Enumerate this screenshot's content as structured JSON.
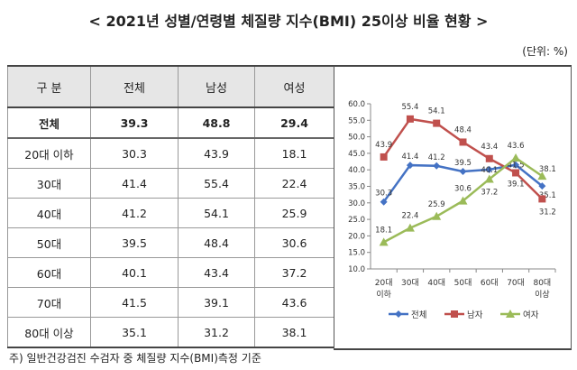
{
  "title": "< 2021년 성별/연령별 체질량 지수(BMI) 25이상 비율 현황 >",
  "unit": "(단위: %)",
  "table": {
    "headers": [
      "구 분",
      "전체",
      "남성",
      "여성"
    ],
    "rows": [
      [
        "전체",
        "39.3",
        "48.8",
        "29.4"
      ],
      [
        "20대 이하",
        "30.3",
        "43.9",
        "18.1"
      ],
      [
        "30대",
        "41.4",
        "55.4",
        "22.4"
      ],
      [
        "40대",
        "41.2",
        "54.1",
        "25.9"
      ],
      [
        "50대",
        "39.5",
        "48.4",
        "30.6"
      ],
      [
        "60대",
        "40.1",
        "43.4",
        "37.2"
      ],
      [
        "70대",
        "41.5",
        "39.1",
        "43.6"
      ],
      [
        "80대 이상",
        "35.1",
        "31.2",
        "38.1"
      ]
    ]
  },
  "chart_data": {
    "type": "line",
    "categories": [
      [
        "20대",
        "이하"
      ],
      [
        "30대",
        ""
      ],
      [
        "40대",
        ""
      ],
      [
        "50대",
        ""
      ],
      [
        "60대",
        ""
      ],
      [
        "70대",
        ""
      ],
      [
        "80대",
        "이상"
      ]
    ],
    "ylim": [
      10,
      60
    ],
    "yticks": [
      "10.0",
      "15.0",
      "20.0",
      "25.0",
      "30.0",
      "35.0",
      "40.0",
      "45.0",
      "50.0",
      "55.0",
      "60.0"
    ],
    "legend": "bottom",
    "grid": false,
    "series": [
      {
        "name": "전체",
        "color": "#4472c4",
        "marker": "diamond",
        "values": [
          30.3,
          41.4,
          41.2,
          39.5,
          40.1,
          41.5,
          35.1
        ]
      },
      {
        "name": "남자",
        "color": "#c0504d",
        "marker": "square",
        "values": [
          43.9,
          55.4,
          54.1,
          48.4,
          43.4,
          39.1,
          31.2
        ]
      },
      {
        "name": "여자",
        "color": "#9bbb59",
        "marker": "triangle",
        "values": [
          18.1,
          22.4,
          25.9,
          30.6,
          37.2,
          43.6,
          38.1
        ]
      }
    ]
  },
  "footnote": "주) 일반건강검진 수검자 중 체질량 지수(BMI)측정 기준"
}
